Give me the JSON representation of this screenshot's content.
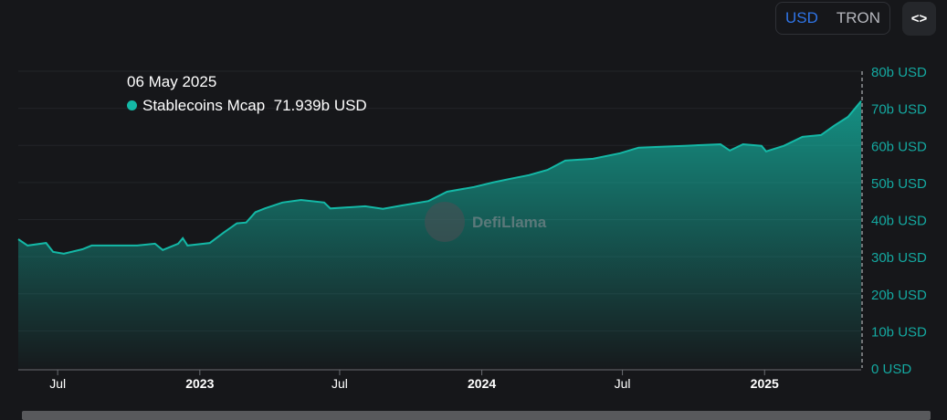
{
  "toolbar": {
    "options": [
      "USD",
      "TRON"
    ],
    "selected": "USD",
    "embed_icon": "code-brackets-icon"
  },
  "tooltip": {
    "date": "06 May 2025",
    "series": "Stablecoins Mcap",
    "value": "71.939b USD"
  },
  "watermark": "DefiLlama",
  "colors": {
    "line": "#14b8a6",
    "accent": "#2f74e6",
    "axis_label": "#14a8a0"
  },
  "chart_data": {
    "type": "area",
    "title": "",
    "xlabel": "",
    "ylabel": "",
    "ylim": [
      0,
      80
    ],
    "xlim": [
      "2022-05-11",
      "2025-05-06"
    ],
    "y_ticks": [
      "0 USD",
      "10b USD",
      "20b USD",
      "30b USD",
      "40b USD",
      "50b USD",
      "60b USD",
      "70b USD",
      "80b USD"
    ],
    "x_ticks": [
      {
        "date": "2022-07-01",
        "label": "Jul"
      },
      {
        "date": "2023-01-01",
        "label": "2023"
      },
      {
        "date": "2023-07-01",
        "label": "Jul"
      },
      {
        "date": "2024-01-01",
        "label": "2024"
      },
      {
        "date": "2024-07-01",
        "label": "Jul"
      },
      {
        "date": "2025-01-01",
        "label": "2025"
      }
    ],
    "grid": true,
    "series": [
      {
        "name": "Stablecoins Mcap",
        "unit": "b USD",
        "points": [
          [
            "2022-05-11",
            34.7
          ],
          [
            "2022-05-23",
            33
          ],
          [
            "2022-06-16",
            33.7
          ],
          [
            "2022-06-25",
            31.3
          ],
          [
            "2022-07-09",
            30.8
          ],
          [
            "2022-08-02",
            32
          ],
          [
            "2022-08-14",
            33
          ],
          [
            "2022-10-12",
            33
          ],
          [
            "2022-11-04",
            33.5
          ],
          [
            "2022-11-14",
            31.8
          ],
          [
            "2022-12-04",
            33.5
          ],
          [
            "2022-12-10",
            35
          ],
          [
            "2022-12-16",
            33
          ],
          [
            "2023-01-14",
            33.7
          ],
          [
            "2023-02-01",
            36.5
          ],
          [
            "2023-02-18",
            39
          ],
          [
            "2023-03-02",
            39.2
          ],
          [
            "2023-03-14",
            42
          ],
          [
            "2023-03-26",
            43
          ],
          [
            "2023-04-18",
            44.6
          ],
          [
            "2023-05-12",
            45.3
          ],
          [
            "2023-06-11",
            44.6
          ],
          [
            "2023-06-19",
            43
          ],
          [
            "2023-08-03",
            43.6
          ],
          [
            "2023-08-26",
            42.9
          ],
          [
            "2023-09-19",
            43.8
          ],
          [
            "2023-10-24",
            45
          ],
          [
            "2023-11-17",
            47.5
          ],
          [
            "2023-12-22",
            48.8
          ],
          [
            "2024-01-15",
            50
          ],
          [
            "2024-02-07",
            51
          ],
          [
            "2024-03-02",
            52
          ],
          [
            "2024-03-26",
            53.4
          ],
          [
            "2024-04-18",
            55.9
          ],
          [
            "2024-05-24",
            56.4
          ],
          [
            "2024-06-28",
            57.9
          ],
          [
            "2024-07-22",
            59.4
          ],
          [
            "2024-09-19",
            59.9
          ],
          [
            "2024-11-05",
            60.3
          ],
          [
            "2024-11-17",
            58.6
          ],
          [
            "2024-12-04",
            60.3
          ],
          [
            "2024-12-28",
            59.9
          ],
          [
            "2025-01-03",
            58.4
          ],
          [
            "2025-01-26",
            59.9
          ],
          [
            "2025-02-19",
            62.3
          ],
          [
            "2025-03-15",
            62.8
          ],
          [
            "2025-04-01",
            65.3
          ],
          [
            "2025-04-19",
            67.7
          ],
          [
            "2025-05-06",
            71.939
          ]
        ]
      }
    ]
  }
}
